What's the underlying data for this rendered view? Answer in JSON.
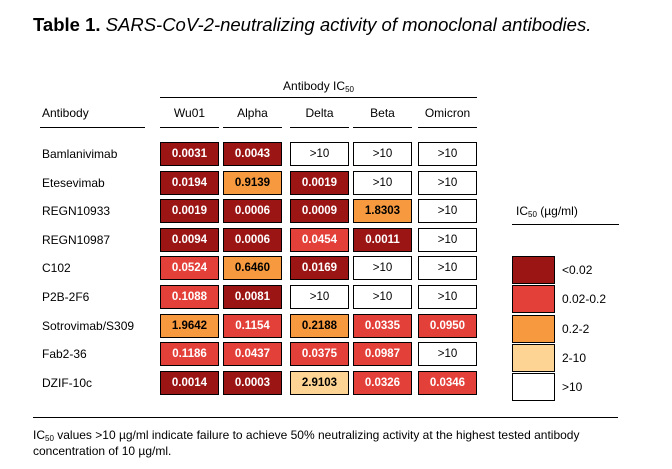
{
  "title": {
    "prefix": "Table 1.",
    "text": "SARS-CoV-2-neutralizing activity of monoclonal antibodies."
  },
  "group_header": {
    "text": "Antibody IC",
    "sub": "50"
  },
  "columns": {
    "antibody": "Antibody",
    "variants": [
      "Wu01",
      "Alpha",
      "Delta",
      "Beta",
      "Omicron"
    ]
  },
  "rows": [
    {
      "name": "Bamlanivimab",
      "values": [
        "0.0031",
        "0.0043",
        ">10",
        ">10",
        ">10"
      ],
      "levels": [
        1,
        1,
        5,
        5,
        5
      ]
    },
    {
      "name": "Etesevimab",
      "values": [
        "0.0194",
        "0.9139",
        "0.0019",
        ">10",
        ">10"
      ],
      "levels": [
        1,
        3,
        1,
        5,
        5
      ]
    },
    {
      "name": "REGN10933",
      "values": [
        "0.0019",
        "0.0006",
        "0.0009",
        "1.8303",
        ">10"
      ],
      "levels": [
        1,
        1,
        1,
        3,
        5
      ]
    },
    {
      "name": "REGN10987",
      "values": [
        "0.0094",
        "0.0006",
        "0.0454",
        "0.0011",
        ">10"
      ],
      "levels": [
        1,
        1,
        2,
        1,
        5
      ]
    },
    {
      "name": "C102",
      "values": [
        "0.0524",
        "0.6460",
        "0.0169",
        ">10",
        ">10"
      ],
      "levels": [
        2,
        3,
        1,
        5,
        5
      ]
    },
    {
      "name": "P2B-2F6",
      "values": [
        "0.1088",
        "0.0081",
        ">10",
        ">10",
        ">10"
      ],
      "levels": [
        2,
        1,
        5,
        5,
        5
      ]
    },
    {
      "name": "Sotrovimab/S309",
      "values": [
        "1.9642",
        "0.1154",
        "0.2188",
        "0.0335",
        "0.0950"
      ],
      "levels": [
        3,
        2,
        3,
        2,
        2
      ]
    },
    {
      "name": "Fab2-36",
      "values": [
        "0.1186",
        "0.0437",
        "0.0375",
        "0.0987",
        ">10"
      ],
      "levels": [
        2,
        2,
        2,
        2,
        5
      ]
    },
    {
      "name": "DZIF-10c",
      "values": [
        "0.0014",
        "0.0003",
        "2.9103",
        "0.0326",
        "0.0346"
      ],
      "levels": [
        1,
        1,
        4,
        2,
        2
      ]
    }
  ],
  "legend": {
    "title": "IC",
    "title_sub": "50",
    "title_unit": " (µg/ml)",
    "items": [
      {
        "label": "<0.02",
        "color": "#9b1515"
      },
      {
        "label": "0.02-0.2",
        "color": "#e4403a"
      },
      {
        "label": "0.2-2",
        "color": "#f79a3f"
      },
      {
        "label": "2-10",
        "color": "#fdd493"
      },
      {
        "label": ">10",
        "color": "#ffffff"
      }
    ]
  },
  "footnote": {
    "prefix": "IC",
    "sub": "50",
    "text": " values >10 µg/ml indicate failure to achieve 50% neutralizing activity at the highest tested antibody concentration of 10 µg/ml."
  }
}
